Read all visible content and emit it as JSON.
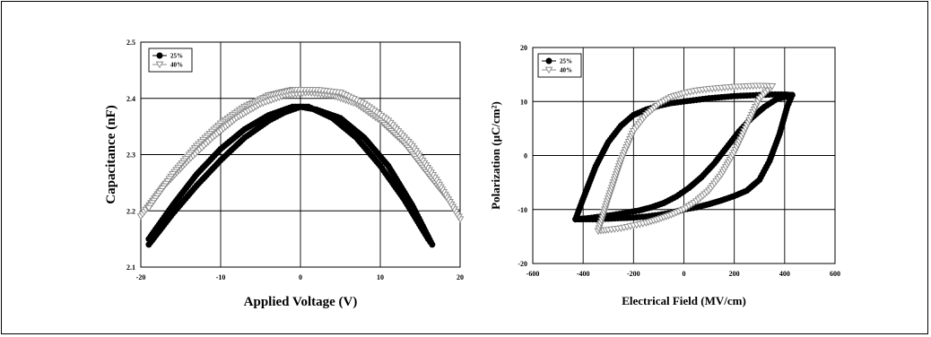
{
  "chart_data": [
    {
      "type": "line",
      "title": "",
      "xlabel": "Applied Voltage (V)",
      "ylabel": "Capacitance (nF)",
      "xlim": [
        -20,
        20
      ],
      "ylim": [
        2.1,
        2.5
      ],
      "x_ticks": [
        "-20",
        "-10",
        "0",
        "10",
        "20"
      ],
      "y_ticks": [
        "2.1",
        "2.2",
        "2.3",
        "2.4",
        "2.5"
      ],
      "grid": true,
      "legend": "top-left",
      "series": [
        {
          "name": "25%",
          "marker": "circle",
          "color": "#000000",
          "x": [
            -19,
            -16,
            -13,
            -10,
            -7,
            -4,
            -2,
            0,
            2,
            5,
            8,
            11,
            14,
            16.5,
            16,
            13,
            10,
            7,
            4,
            1,
            -1,
            -4,
            -7,
            -10,
            -13,
            -16,
            -19
          ],
          "y": [
            2.14,
            2.195,
            2.245,
            2.29,
            2.33,
            2.36,
            2.375,
            2.385,
            2.38,
            2.365,
            2.33,
            2.28,
            2.21,
            2.14,
            2.15,
            2.22,
            2.28,
            2.33,
            2.365,
            2.385,
            2.385,
            2.37,
            2.345,
            2.31,
            2.265,
            2.21,
            2.15
          ]
        },
        {
          "name": "40%",
          "marker": "triangle-down",
          "color": "#888888",
          "x": [
            -20,
            -17,
            -14,
            -11,
            -8,
            -5,
            -2,
            1,
            4,
            7,
            10,
            13,
            16,
            18.5,
            20,
            17,
            14,
            11,
            8,
            5,
            2,
            -1,
            -4,
            -7,
            -10,
            -13,
            -16,
            -19
          ],
          "y": [
            2.19,
            2.245,
            2.29,
            2.33,
            2.365,
            2.39,
            2.405,
            2.41,
            2.405,
            2.39,
            2.36,
            2.32,
            2.265,
            2.22,
            2.185,
            2.255,
            2.315,
            2.36,
            2.39,
            2.41,
            2.415,
            2.415,
            2.405,
            2.385,
            2.355,
            2.315,
            2.265,
            2.205
          ]
        }
      ]
    },
    {
      "type": "line",
      "title": "",
      "xlabel": "Electrical Field (MV/cm)",
      "ylabel": "Polarization (μC/cm²)",
      "xlim": [
        -600,
        600
      ],
      "ylim": [
        -20,
        20
      ],
      "x_ticks": [
        "-600",
        "-400",
        "-200",
        "0",
        "200",
        "400",
        "600"
      ],
      "y_ticks": [
        "-20",
        "-10",
        "0",
        "10",
        "20"
      ],
      "grid": true,
      "legend": "top-left",
      "series": [
        {
          "name": "25%",
          "marker": "circle",
          "color": "#000000",
          "x": [
            -430,
            -380,
            -330,
            -280,
            -230,
            -180,
            -130,
            -80,
            -30,
            20,
            70,
            120,
            170,
            220,
            270,
            320,
            370,
            420,
            430,
            410,
            380,
            340,
            300,
            250,
            200,
            150,
            100,
            50,
            0,
            -50,
            -100,
            -150,
            -200,
            -250,
            -300,
            -350,
            -400,
            -430
          ],
          "y": [
            -11.8,
            -11.6,
            -11.3,
            -11.0,
            -10.6,
            -10.2,
            -9.6,
            -8.8,
            -7.6,
            -6.0,
            -4.0,
            -1.5,
            1.5,
            4.5,
            7.0,
            9.0,
            10.5,
            11.0,
            11.2,
            9.0,
            4.0,
            -1.0,
            -4.5,
            -6.5,
            -7.5,
            -8.3,
            -9.0,
            -9.6,
            -10.0,
            -10.6,
            -11.0,
            -11.3,
            -11.5,
            -11.6,
            -11.7,
            -11.8,
            -11.8,
            -11.8
          ],
          "upper_x": [
            -430,
            -400,
            -350,
            -300,
            -250,
            -200,
            -150,
            -100,
            -50,
            0,
            50,
            100,
            150,
            200,
            250,
            300,
            350,
            400,
            430
          ],
          "upper_y": [
            -11.8,
            -8.0,
            -2.0,
            2.5,
            5.5,
            7.5,
            8.5,
            9.2,
            9.7,
            10.0,
            10.3,
            10.6,
            10.8,
            11.0,
            11.1,
            11.2,
            11.3,
            11.3,
            11.2
          ]
        },
        {
          "name": "40%",
          "marker": "triangle-down",
          "color": "#888888",
          "x": [
            -340,
            -300,
            -250,
            -200,
            -150,
            -100,
            -50,
            0,
            50,
            100,
            150,
            200,
            250,
            300,
            350
          ],
          "y": [
            -14.0,
            -13.8,
            -13.5,
            -13.0,
            -12.5,
            -11.8,
            -11.0,
            -10.0,
            -8.5,
            -6.5,
            -3.5,
            0.5,
            5.5,
            10.5,
            12.8
          ],
          "upper_x": [
            -340,
            -300,
            -250,
            -200,
            -150,
            -100,
            -50,
            0,
            50,
            100,
            150,
            200,
            250,
            300,
            350
          ],
          "upper_y": [
            -14.0,
            -8.0,
            -1.0,
            4.5,
            7.5,
            9.5,
            10.8,
            11.5,
            12.0,
            12.3,
            12.5,
            12.7,
            12.8,
            12.9,
            12.8
          ]
        }
      ]
    }
  ]
}
